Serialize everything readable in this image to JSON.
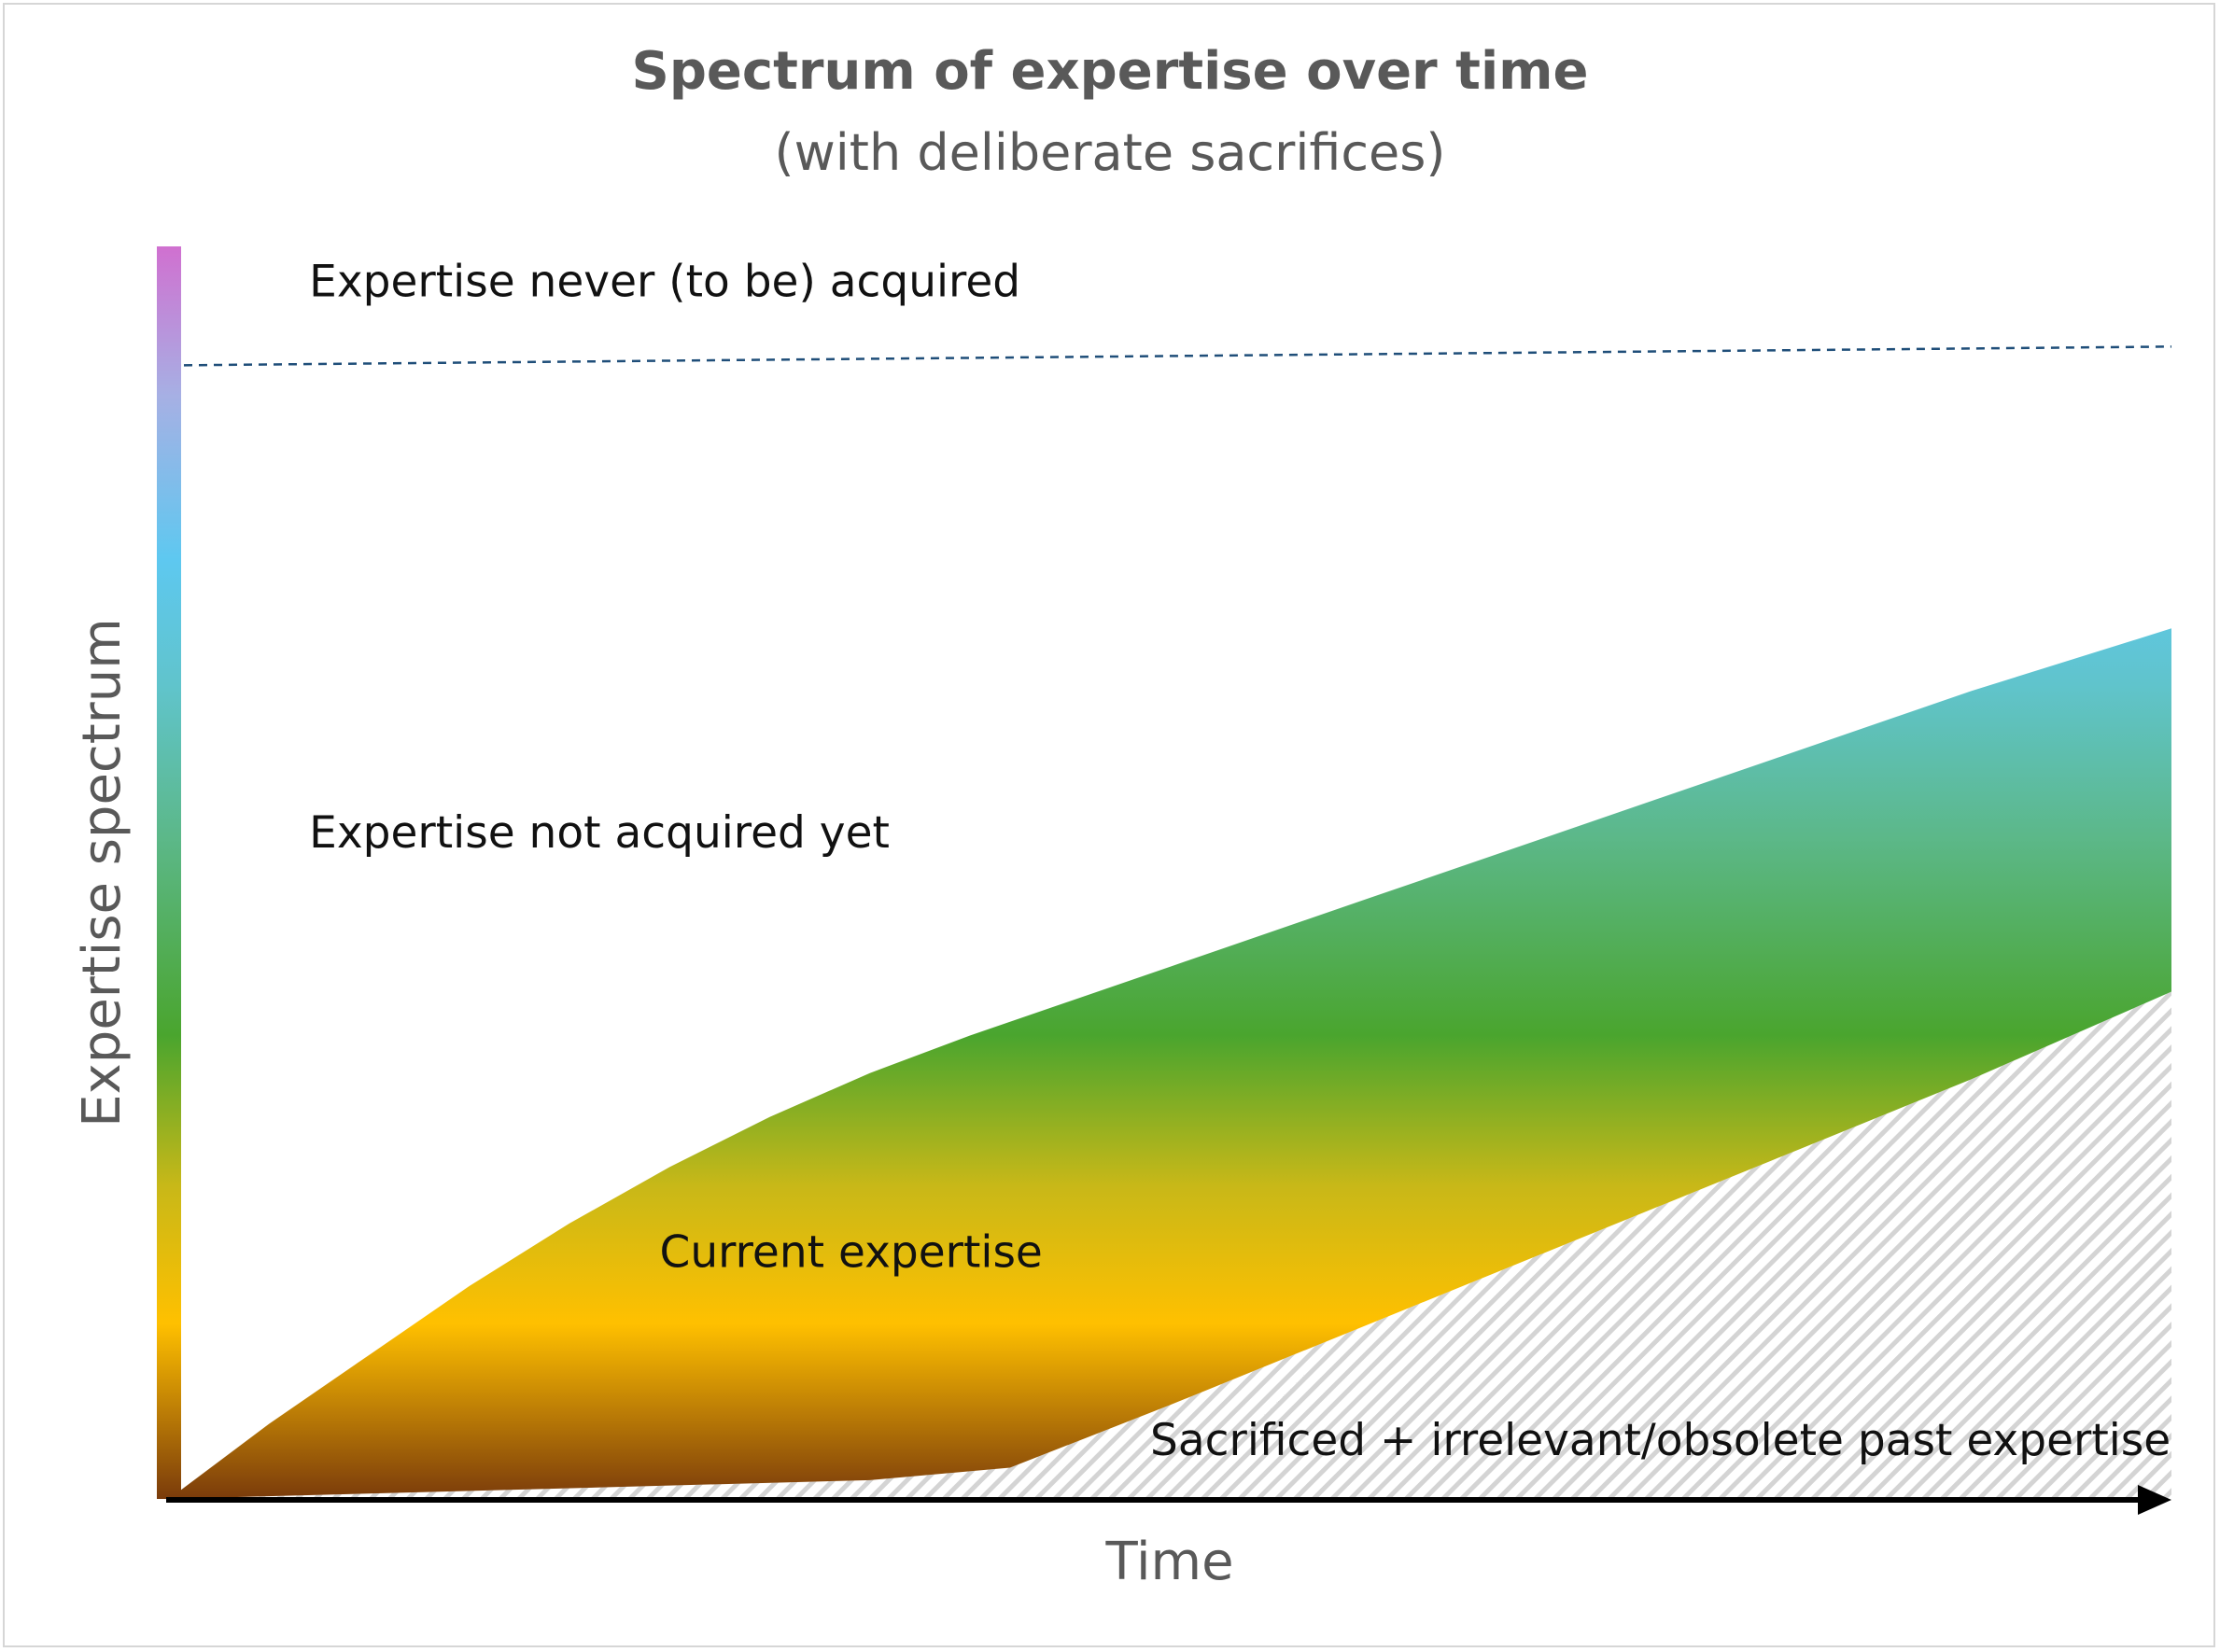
{
  "chart_data": {
    "type": "area",
    "title": "Spectrum of expertise over time",
    "subtitle": "(with deliberate sacrifices)",
    "xlabel": "Time",
    "ylabel": "Expertise spectrum",
    "grid": false,
    "legend": "none",
    "xlim": [
      0,
      100
    ],
    "ylim": [
      0,
      100
    ],
    "regions": [
      {
        "name": "Current expertise",
        "upper": [
          [
            0,
            0
          ],
          [
            5,
            6
          ],
          [
            10,
            11.5
          ],
          [
            15,
            17
          ],
          [
            20,
            22
          ],
          [
            25,
            26.5
          ],
          [
            30,
            30.5
          ],
          [
            35,
            34
          ],
          [
            40,
            37
          ],
          [
            50,
            42.5
          ],
          [
            60,
            48
          ],
          [
            70,
            53.5
          ],
          [
            80,
            59
          ],
          [
            90,
            64.5
          ],
          [
            100,
            69.5
          ]
        ],
        "lower": [
          [
            0,
            0
          ],
          [
            35,
            1.5
          ],
          [
            42,
            2.5
          ],
          [
            50,
            7.5
          ],
          [
            60,
            14
          ],
          [
            70,
            20.5
          ],
          [
            80,
            27
          ],
          [
            90,
            33.5
          ],
          [
            100,
            40.5
          ]
        ]
      },
      {
        "name": "Sacrificed + irrelevant/obsolete past expertise",
        "upper": [
          [
            0,
            0
          ],
          [
            35,
            1.5
          ],
          [
            42,
            2.5
          ],
          [
            50,
            7.5
          ],
          [
            60,
            14
          ],
          [
            70,
            20.5
          ],
          [
            80,
            27
          ],
          [
            90,
            33.5
          ],
          [
            100,
            40.5
          ]
        ],
        "lower": [
          [
            0,
            0
          ],
          [
            100,
            0
          ]
        ],
        "pattern": "diagonal hatch"
      }
    ],
    "reference_line": {
      "style": "dashed",
      "points": [
        [
          0,
          90.5
        ],
        [
          100,
          92
        ]
      ]
    },
    "annotations": [
      {
        "text": "Expertise never (to be) acquired",
        "x": 7,
        "y": 96
      },
      {
        "text": "Expertise not acquired yet",
        "x": 7,
        "y": 52
      },
      {
        "text": "Current expertise",
        "x": 24.5,
        "y": 18.5
      },
      {
        "text": "Sacrificed + irrelevant/obsolete past expertise",
        "x": 49,
        "y": 3.5
      }
    ],
    "spectrum_colors": [
      "#7a3b0b",
      "#ffc000",
      "#4aa52e",
      "#5ec8f0",
      "#d070d0"
    ]
  },
  "colors": {
    "axis": "#000000",
    "reference_line": "#1f4e79",
    "hatch": "#d4d4d4",
    "title_text": "#595959"
  }
}
